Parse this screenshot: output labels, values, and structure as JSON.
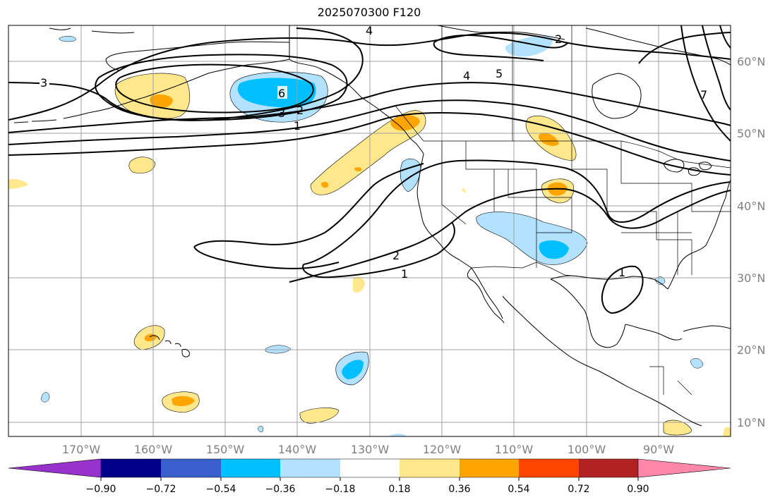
{
  "title": "2025070300 F120",
  "map": {
    "projection": "PlateCarree",
    "lon_range": [
      -180,
      -80
    ],
    "lat_range": [
      8,
      65
    ],
    "lon_ticks": [
      {
        "lon": -170,
        "label": "170°W"
      },
      {
        "lon": -160,
        "label": "160°W"
      },
      {
        "lon": -150,
        "label": "150°W"
      },
      {
        "lon": -140,
        "label": "140°W"
      },
      {
        "lon": -130,
        "label": "130°W"
      },
      {
        "lon": -120,
        "label": "120°W"
      },
      {
        "lon": -110,
        "label": "110°W"
      },
      {
        "lon": -100,
        "label": "100°W"
      },
      {
        "lon": -90,
        "label": "90°W"
      }
    ],
    "lat_ticks": [
      {
        "lat": 60,
        "label": "60°N"
      },
      {
        "lat": 50,
        "label": "50°N"
      },
      {
        "lat": 40,
        "label": "40°N"
      },
      {
        "lat": 30,
        "label": "30°N"
      },
      {
        "lat": 20,
        "label": "20°N"
      },
      {
        "lat": 10,
        "label": "10°N"
      }
    ],
    "grid": true,
    "grid_color": "#a0a0a0",
    "coastline_color": "#000000"
  },
  "contour_labels": [
    "1",
    "2",
    "3",
    "4",
    "5",
    "6",
    "7"
  ],
  "colorbar": {
    "levels": [
      "−0.90",
      "−0.72",
      "−0.54",
      "−0.36",
      "−0.18",
      "0.18",
      "0.36",
      "0.54",
      "0.72",
      "0.90"
    ],
    "colors": [
      "#9932cc",
      "#00008b",
      "#3a5fcd",
      "#00bfff",
      "#b2e2ff",
      "#ffffff",
      "#ffe88c",
      "#ffa500",
      "#ff4500",
      "#b22222",
      "#ff88aa"
    ],
    "extend": "both"
  }
}
